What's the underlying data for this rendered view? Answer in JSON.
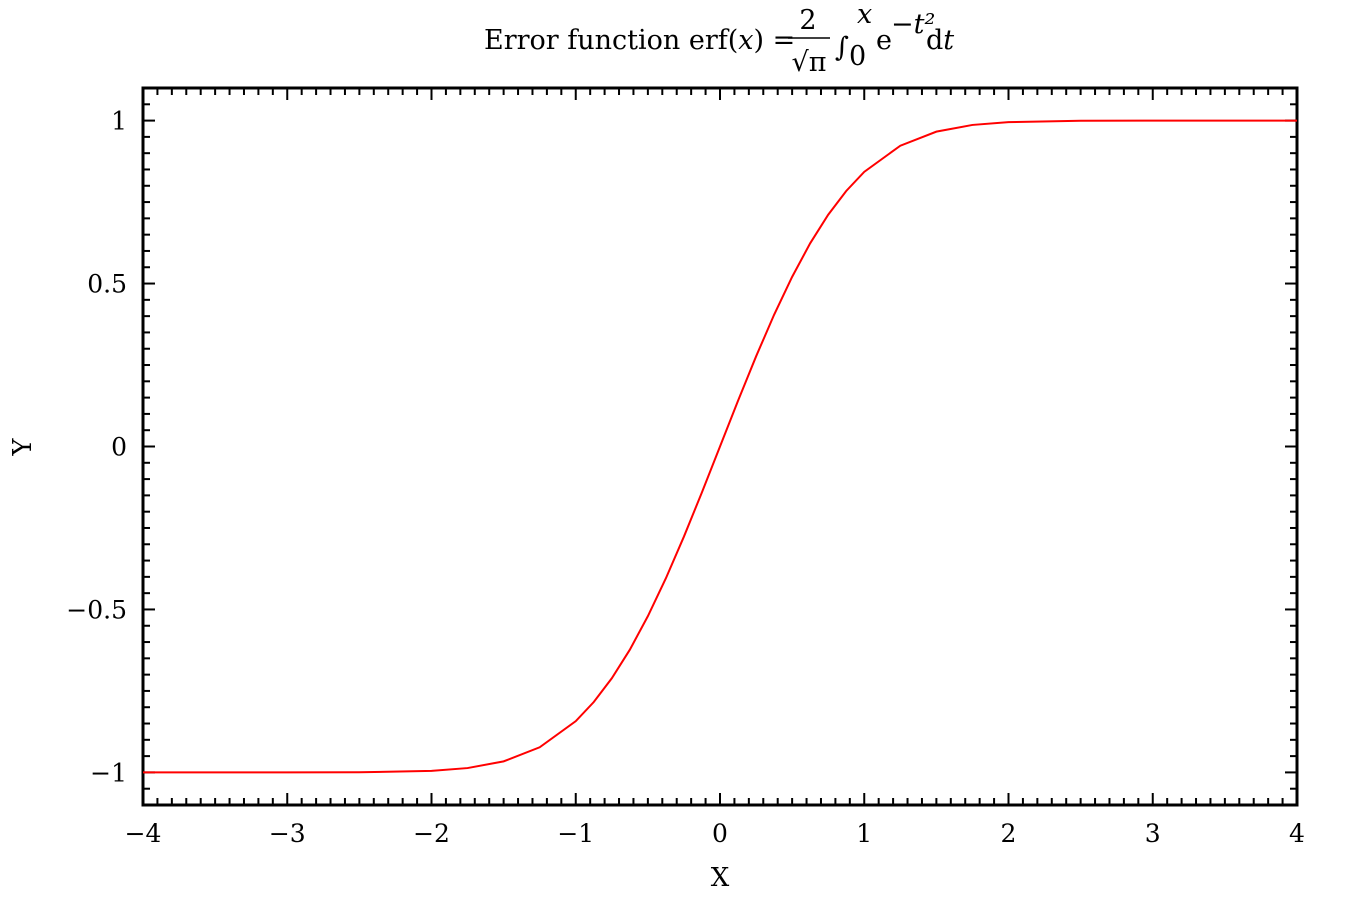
{
  "chart_data": {
    "type": "line",
    "title": {
      "prefix": "Error function erf(",
      "var": "x",
      "middle": ") =",
      "numerator": "2",
      "denominator": "√π",
      "integral": "∫",
      "upper_limit": "x",
      "lower_limit": "0",
      "integrand_base": "e",
      "integrand_exponent": "−t²",
      "differential": "d",
      "differential_var": "t"
    },
    "xlabel": "X",
    "ylabel": "Y",
    "xlim": [
      -4,
      4
    ],
    "ylim": [
      -1.1,
      1.1
    ],
    "x_ticks": [
      -4,
      -3,
      -2,
      -1,
      0,
      1,
      2,
      3,
      4
    ],
    "x_tick_labels": [
      "−4",
      "−3",
      "−2",
      "−1",
      "0",
      "1",
      "2",
      "3",
      "4"
    ],
    "y_ticks": [
      -1,
      -0.5,
      0,
      0.5,
      1
    ],
    "y_tick_labels": [
      "−1",
      "−0.5",
      "0",
      "0.5",
      "1"
    ],
    "x_minor_step": 0.1,
    "y_minor_step": 0.05,
    "grid": false,
    "series": [
      {
        "color": "#ff0000",
        "x": [
          -4.0,
          -3.5,
          -3.0,
          -2.5,
          -2.0,
          -1.75,
          -1.5,
          -1.25,
          -1.0,
          -0.875,
          -0.75,
          -0.625,
          -0.5,
          -0.375,
          -0.25,
          -0.125,
          0.0,
          0.125,
          0.25,
          0.375,
          0.5,
          0.625,
          0.75,
          0.875,
          1.0,
          1.25,
          1.5,
          1.75,
          2.0,
          2.5,
          3.0,
          3.5,
          4.0
        ],
        "y": [
          -1.0,
          -1.0,
          -0.99998,
          -0.99959,
          -0.99532,
          -0.98667,
          -0.96611,
          -0.9229,
          -0.8427,
          -0.78408,
          -0.71116,
          -0.62353,
          -0.5205,
          -0.40412,
          -0.27633,
          -0.14032,
          0.0,
          0.14032,
          0.27633,
          0.40412,
          0.5205,
          0.62353,
          0.71116,
          0.78408,
          0.8427,
          0.9229,
          0.96611,
          0.98667,
          0.99532,
          0.99959,
          0.99998,
          1.0,
          1.0
        ]
      }
    ]
  }
}
